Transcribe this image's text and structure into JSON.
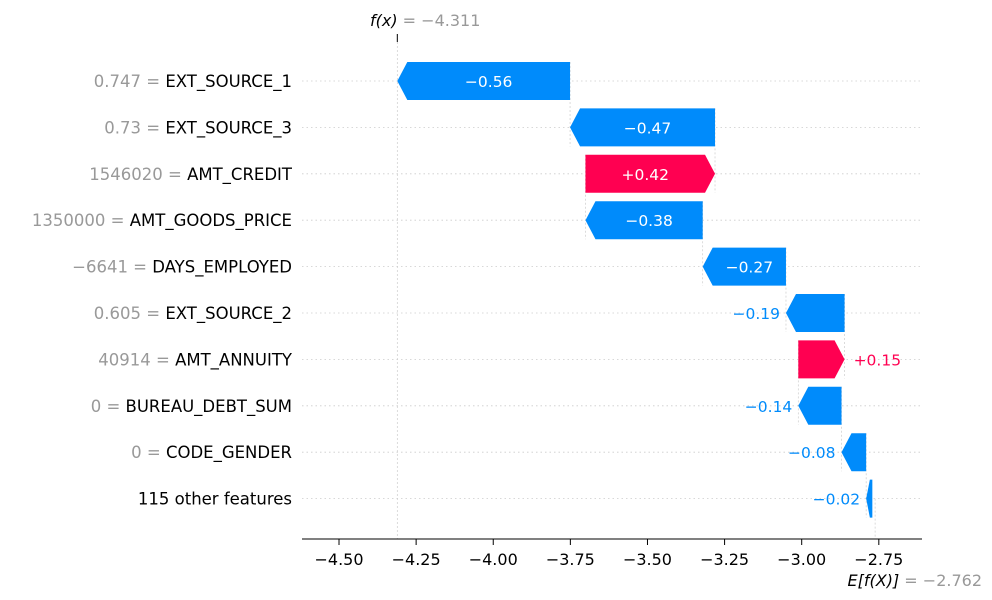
{
  "chart_data": {
    "type": "waterfall",
    "fx_label": "f(x)",
    "fx_value_text": "= −4.311",
    "fx_value": -4.311,
    "ex_label": "E[f(X)]",
    "ex_value_text": "= −2.762",
    "ex_value": -2.762,
    "xlim": [
      -4.62,
      -2.61
    ],
    "xticks": [
      -4.5,
      -4.25,
      -4.0,
      -3.75,
      -3.5,
      -3.25,
      -3.0,
      -2.75
    ],
    "xtick_labels": [
      "−4.50",
      "−4.25",
      "−4.00",
      "−3.75",
      "−3.50",
      "−3.25",
      "−3.00",
      "−2.75"
    ],
    "colors": {
      "positive": "#ff0051",
      "negative": "#008bfb",
      "feature_value": "#999999",
      "grid": "#cccccc"
    },
    "features": [
      {
        "value_text": "0.747 =",
        "name": "EXT_SOURCE_1",
        "contribution": -0.56,
        "label": "−0.56",
        "start": -3.751,
        "end": -4.311
      },
      {
        "value_text": "0.73 =",
        "name": "EXT_SOURCE_3",
        "contribution": -0.47,
        "label": "−0.47",
        "start": -3.281,
        "end": -3.751
      },
      {
        "value_text": "1546020 =",
        "name": "AMT_CREDIT",
        "contribution": 0.42,
        "label": "+0.42",
        "start": -3.701,
        "end": -3.281
      },
      {
        "value_text": "1350000 =",
        "name": "AMT_GOODS_PRICE",
        "contribution": -0.38,
        "label": "−0.38",
        "start": -3.321,
        "end": -3.701
      },
      {
        "value_text": "−6641 =",
        "name": "DAYS_EMPLOYED",
        "contribution": -0.27,
        "label": "−0.27",
        "start": -3.051,
        "end": -3.321
      },
      {
        "value_text": "0.605 =",
        "name": "EXT_SOURCE_2",
        "contribution": -0.19,
        "label": "−0.19",
        "start": -2.861,
        "end": -3.051
      },
      {
        "value_text": "40914 =",
        "name": "AMT_ANNUITY",
        "contribution": 0.15,
        "label": "+0.15",
        "start": -3.011,
        "end": -2.861
      },
      {
        "value_text": "0 =",
        "name": "BUREAU_DEBT_SUM",
        "contribution": -0.14,
        "label": "−0.14",
        "start": -2.871,
        "end": -3.011
      },
      {
        "value_text": "0 =",
        "name": "CODE_GENDER",
        "contribution": -0.08,
        "label": "−0.08",
        "start": -2.791,
        "end": -2.871
      },
      {
        "value_text": "",
        "name": "115 other features",
        "contribution": -0.02,
        "label": "−0.02",
        "start": -2.771,
        "end": -2.791
      }
    ]
  }
}
